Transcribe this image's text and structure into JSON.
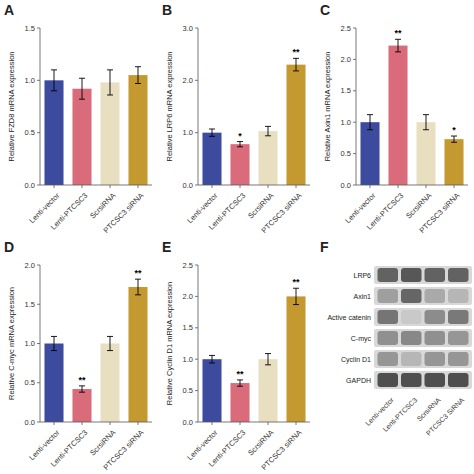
{
  "chart_data": [
    {
      "type": "bar",
      "title": "A",
      "ylabel": "Relative FZD8 mRNA expression",
      "categories": [
        "Lenti-vector",
        "Lenti-PTCSC3",
        "ScrsiRNA",
        "PTCSC3 siRNA"
      ],
      "values": [
        1.0,
        0.92,
        0.98,
        1.05
      ],
      "errors": [
        0.1,
        0.1,
        0.12,
        0.08
      ],
      "colors": [
        "#3d4b9e",
        "#d96b7a",
        "#e8dfc0",
        "#c49a30"
      ],
      "ylim": [
        0,
        1.5
      ],
      "yticks": [
        {
          "value": 0,
          "label": "0.0"
        },
        0.5,
        {
          "value": 1,
          "label": "1.0"
        },
        1.5
      ]
    },
    {
      "type": "bar",
      "title": "B",
      "ylabel": "Relative LRP6 mRNA expression",
      "categories": [
        "Lenti-vector",
        "Lenti-PTCSC3",
        "ScrsiRNA",
        "PTCSC3 siRNA"
      ],
      "values": [
        1.0,
        0.78,
        1.03,
        2.3
      ],
      "errors": [
        0.07,
        0.05,
        0.09,
        0.12
      ],
      "annotations": [
        null,
        "*",
        null,
        "**"
      ],
      "colors": [
        "#3d4b9e",
        "#d96b7a",
        "#e8dfc0",
        "#c49a30"
      ],
      "ylim": [
        0,
        3.0
      ],
      "yticks": [
        {
          "value": 0,
          "label": "0.0"
        },
        {
          "value": 1,
          "label": "1.0"
        },
        {
          "value": 2,
          "label": "2.0"
        },
        {
          "value": 3,
          "label": "3.0"
        }
      ]
    },
    {
      "type": "bar",
      "title": "C",
      "ylabel": "Relative Axin1 mRNA expression",
      "categories": [
        "Lenti-vector",
        "Lenti-PTCSC3",
        "ScrsiRNA",
        "PTCSC3 siRNA"
      ],
      "values": [
        1.0,
        2.22,
        1.0,
        0.73
      ],
      "errors": [
        0.12,
        0.1,
        0.12,
        0.05
      ],
      "annotations": [
        null,
        "**",
        null,
        "*"
      ],
      "colors": [
        "#3d4b9e",
        "#d96b7a",
        "#e8dfc0",
        "#c49a30"
      ],
      "ylim": [
        0,
        2.5
      ],
      "yticks": [
        {
          "value": 0,
          "label": "0.0"
        },
        0.5,
        {
          "value": 1,
          "label": "1.0"
        },
        1.5,
        {
          "value": 2,
          "label": "2.0"
        },
        2.5
      ]
    },
    {
      "type": "bar",
      "title": "D",
      "ylabel": "Relative C-myc mRNA expression",
      "categories": [
        "Lenti-vector",
        "Lenti-PTCSC3",
        "ScrsiRNA",
        "PTCSC3 siRNA"
      ],
      "values": [
        1.0,
        0.42,
        1.0,
        1.72
      ],
      "errors": [
        0.09,
        0.04,
        0.09,
        0.1
      ],
      "annotations": [
        null,
        "**",
        null,
        "**"
      ],
      "colors": [
        "#3d4b9e",
        "#d96b7a",
        "#e8dfc0",
        "#c49a30"
      ],
      "ylim": [
        0,
        2.0
      ],
      "yticks": [
        {
          "value": 0,
          "label": "0.0"
        },
        0.5,
        {
          "value": 1,
          "label": "1.0"
        },
        1.5,
        {
          "value": 2,
          "label": "2.0"
        }
      ]
    },
    {
      "type": "bar",
      "title": "E",
      "ylabel": "Relative Cyclin D1 mRNA expression",
      "categories": [
        "Lenti-vector",
        "Lenti-PTCSC3",
        "ScrsiRNA",
        "PTCSC3 siRNA"
      ],
      "values": [
        1.0,
        0.62,
        1.0,
        2.0
      ],
      "errors": [
        0.06,
        0.05,
        0.09,
        0.13
      ],
      "annotations": [
        null,
        "**",
        null,
        "**"
      ],
      "colors": [
        "#3d4b9e",
        "#d96b7a",
        "#e8dfc0",
        "#c49a30"
      ],
      "ylim": [
        0,
        2.5
      ],
      "yticks": [
        {
          "value": 0,
          "label": "0.0"
        },
        0.5,
        {
          "value": 1,
          "label": "1.0"
        },
        1.5,
        {
          "value": 2,
          "label": "2.0"
        },
        2.5
      ]
    },
    {
      "type": "heatmap",
      "title": "F",
      "categories": [
        "Lenti-vector",
        "Lenti-PTCSC3",
        "ScrsiRNA",
        "PTCSC3 SiRNA"
      ],
      "rows": [
        "LRP6",
        "Axin1",
        "Active catenin",
        "C-myc",
        "Cyclin D1",
        "GAPDH"
      ],
      "values": [
        [
          0.82,
          0.88,
          0.82,
          0.82
        ],
        [
          0.5,
          0.8,
          0.45,
          0.38
        ],
        [
          0.72,
          0.28,
          0.6,
          0.7
        ],
        [
          0.58,
          0.62,
          0.58,
          0.55
        ],
        [
          0.55,
          0.38,
          0.55,
          0.55
        ],
        [
          0.92,
          0.92,
          0.92,
          0.92
        ]
      ]
    }
  ]
}
